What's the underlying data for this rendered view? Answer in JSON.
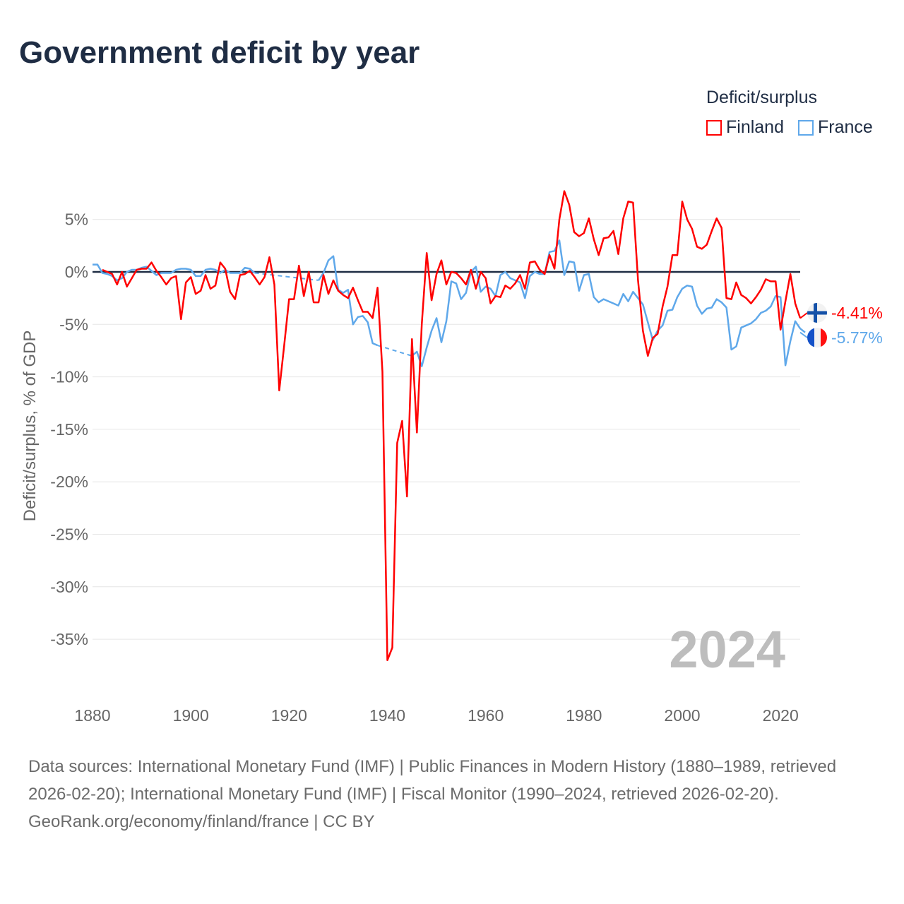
{
  "title": "Government deficit by year",
  "legend": {
    "title": "Deficit/surplus",
    "items": [
      {
        "label": "Finland",
        "color": "#ff0000"
      },
      {
        "label": "France",
        "color": "#5fa8ea"
      }
    ]
  },
  "chart_data": {
    "type": "line",
    "title": "Government deficit by year",
    "xlabel": "",
    "ylabel": "Deficit/surplus, % of GDP",
    "xlim": [
      1880,
      2024
    ],
    "ylim": [
      -38,
      8
    ],
    "x_ticks": [
      1880,
      1900,
      1920,
      1940,
      1960,
      1980,
      2000,
      2020
    ],
    "x_tick_labels": [
      "1880",
      "1900",
      "1920",
      "1940",
      "1960",
      "1980",
      "2000",
      "2020"
    ],
    "y_ticks": [
      5,
      0,
      -5,
      -10,
      -15,
      -20,
      -25,
      -30,
      -35
    ],
    "y_tick_labels": [
      "5%",
      "0%",
      "-5%",
      "-10%",
      "-15%",
      "-20%",
      "-25%",
      "-30%",
      "-35%"
    ],
    "grid": true,
    "legend_position": "top-right",
    "year_label": "2024",
    "start_year": 1880,
    "series": [
      {
        "name": "Finland",
        "color": "#ff0000",
        "end_label": "-4.41%",
        "values": [
          null,
          null,
          0.2,
          0,
          -0.2,
          -1.2,
          0,
          -1.4,
          -0.6,
          0.2,
          0.3,
          0.3,
          0.9,
          0.1,
          -0.5,
          -1.2,
          -0.6,
          -0.4,
          -4.5,
          -1.0,
          -0.5,
          -2.1,
          -1.8,
          -0.3,
          -1.6,
          -1.3,
          0.9,
          0.3,
          -1.9,
          -2.6,
          -0.3,
          -0.2,
          0.1,
          -0.5,
          -1.2,
          -0.5,
          1.4,
          -1.2,
          -11.3,
          -7,
          -2.6,
          -2.6,
          0.6,
          -2.3,
          0,
          -2.9,
          -2.9,
          -0.3,
          -2.1,
          -0.8,
          -1.8,
          -2.2,
          -2.5,
          -1.5,
          -2.7,
          -3.8,
          -3.8,
          -4.4,
          -1.5,
          -9.5,
          -37,
          -35.8,
          -16.3,
          -14.2,
          -21.4,
          -6.4,
          -15.3,
          -5,
          1.8,
          -2.7,
          -0.2,
          1.1,
          -1.2,
          0,
          -0.1,
          -0.6,
          -1.2,
          0.2,
          -1.6,
          0,
          -0.6,
          -3.0,
          -2.3,
          -2.4,
          -1.3,
          -1.6,
          -1.1,
          -0.3,
          -1.6,
          0.9,
          1.0,
          0.2,
          -0.2,
          1.6,
          0.3,
          5,
          7.7,
          6.4,
          3.8,
          3.4,
          3.7,
          5.1,
          3.1,
          1.6,
          3.2,
          3.3,
          3.9,
          1.7,
          5.1,
          6.7,
          6.6,
          -0.8,
          -5.6,
          -8,
          -6.3,
          -5.9,
          -3.3,
          -1.4,
          1.6,
          1.6,
          6.7,
          5,
          4.1,
          2.4,
          2.2,
          2.6,
          3.9,
          5.1,
          4.2,
          -2.5,
          -2.6,
          -1,
          -2.2,
          -2.5,
          -3.0,
          -2.4,
          -1.7,
          -0.7,
          -0.9,
          -0.9,
          -5.5,
          -2.8,
          -0.2,
          -3.0,
          -4.41
        ]
      },
      {
        "name": "France",
        "color": "#5fa8ea",
        "end_label": "-5.77%",
        "values": [
          0.7,
          0.7,
          -0.1,
          -0.2,
          -0.4,
          -0.8,
          -0.6,
          0,
          0.2,
          0.2,
          0.4,
          0.5,
          0.1,
          -0.3,
          -0.1,
          -0.1,
          -0.1,
          0.2,
          0.3,
          0.3,
          0.2,
          -0.4,
          -0.4,
          0.2,
          0.3,
          0.2,
          -0.1,
          0.2,
          -0.1,
          -0.1,
          -0.1,
          0.4,
          0.3,
          -0.1,
          null,
          null,
          null,
          null,
          null,
          null,
          null,
          null,
          null,
          null,
          null,
          null,
          -0.8,
          -0.1,
          1.1,
          1.5,
          -1.7,
          -2.0,
          -1.7,
          -5,
          -4.3,
          -4.2,
          -4.8,
          -6.8,
          -7.0,
          null,
          null,
          null,
          null,
          null,
          null,
          -8.0,
          -7.6,
          -9.0,
          -7.2,
          -5.6,
          -4.4,
          -6.7,
          -4.7,
          -0.9,
          -1.1,
          -2.6,
          -2.0,
          0,
          0.5,
          -1.9,
          -1.4,
          -1.6,
          -2.3,
          -0.3,
          0,
          -0.6,
          -0.8,
          -1.0,
          -2.5,
          -0.4,
          0,
          -0.2,
          -0.2,
          1.9,
          2.0,
          3.0,
          -0.3,
          1.0,
          0.9,
          -1.8,
          -0.3,
          -0.2,
          -2.4,
          -2.9,
          -2.6,
          -2.8,
          -3.0,
          -3.2,
          -2.1,
          -2.8,
          -1.9,
          -2.5,
          -3.1,
          -4.8,
          -6.5,
          -5.6,
          -5.1,
          -3.7,
          -3.6,
          -2.4,
          -1.6,
          -1.3,
          -1.4,
          -3.2,
          -4.0,
          -3.5,
          -3.4,
          -2.6,
          -2.9,
          -3.4,
          -7.4,
          -7.1,
          -5.3,
          -5.1,
          -4.9,
          -4.5,
          -3.9,
          -3.7,
          -3.3,
          -2.3,
          -2.4,
          -8.9,
          -6.6,
          -4.7,
          -5.4,
          -5.77
        ]
      }
    ]
  },
  "footer": {
    "sources": "Data sources: International Monetary Fund (IMF) | Public Finances in Modern History (1880–1989, retrieved 2026-02-20); International Monetary Fund (IMF) | Fiscal Monitor (1990–2024, retrieved 2026-02-20).",
    "credit": "GeoRank.org/economy/finland/france | CC BY"
  }
}
